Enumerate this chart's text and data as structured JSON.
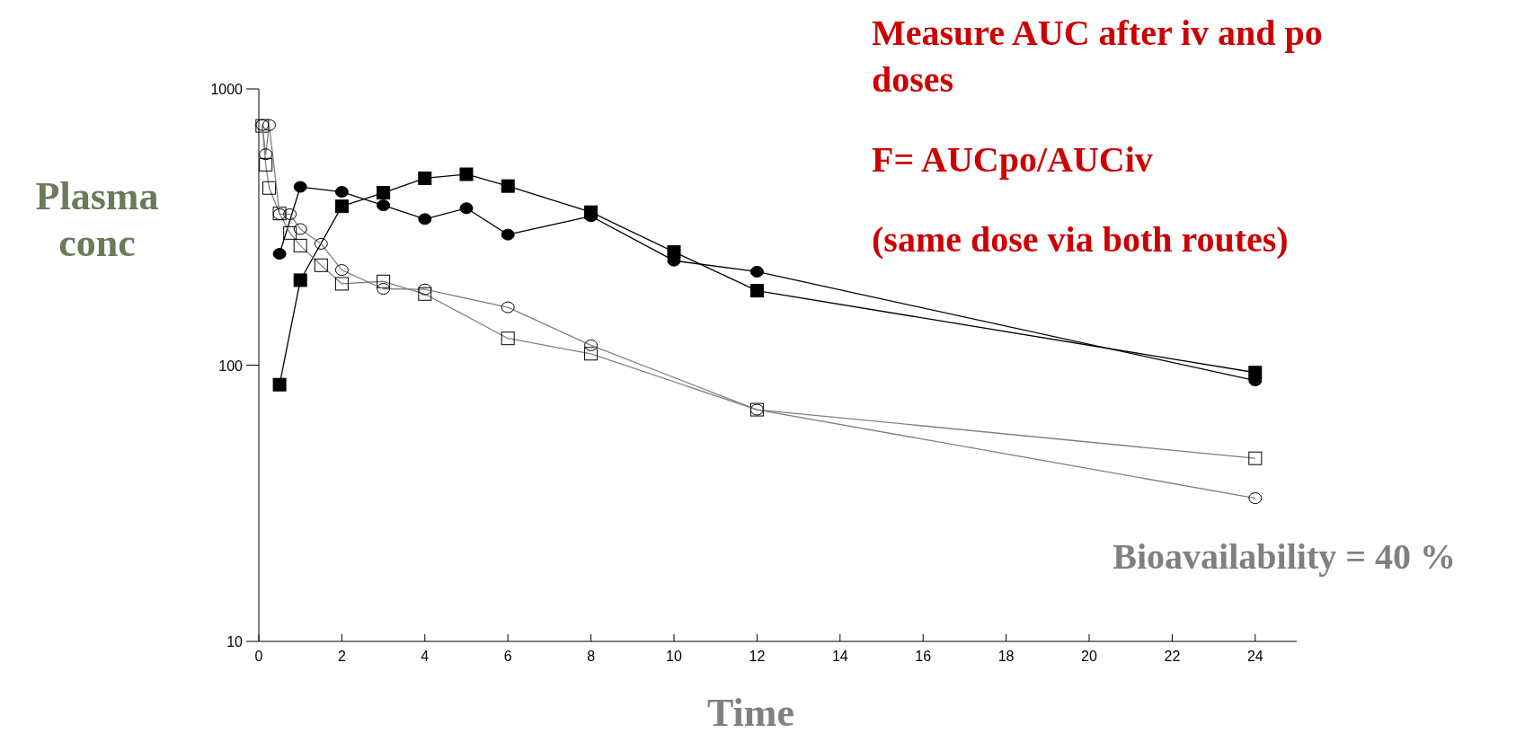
{
  "chart_data": {
    "type": "line",
    "xlabel": "Time",
    "ylabel": "Plasma conc",
    "log": "y",
    "xlim": [
      0,
      25
    ],
    "xticks": [
      0,
      2,
      4,
      6,
      8,
      10,
      12,
      14,
      16,
      18,
      20,
      22,
      24
    ],
    "ylim": [
      10,
      1000
    ],
    "yticks": [
      10,
      100,
      1000
    ],
    "grid": false,
    "series": [
      {
        "color": "#000000",
        "marker": "square",
        "x": [
          0.5,
          1,
          2,
          3,
          4,
          5,
          6,
          8,
          10,
          12,
          24
        ],
        "values": [
          85,
          203,
          376,
          421,
          475,
          491,
          445,
          358,
          257,
          186,
          94
        ]
      },
      {
        "color": "#000000",
        "marker": "circle",
        "x": [
          0.5,
          1,
          2,
          3,
          4,
          5,
          6,
          8,
          10,
          12,
          24
        ],
        "values": [
          253,
          442,
          424,
          379,
          338,
          370,
          297,
          346,
          239,
          218,
          88
        ]
      },
      {
        "color": "#808080",
        "marker": "square",
        "x": [
          0.083,
          0.167,
          0.25,
          0.5,
          0.75,
          1,
          1.5,
          2,
          3,
          4,
          6,
          8,
          12,
          24
        ],
        "values": [
          735,
          532,
          438,
          354,
          301,
          271,
          230,
          197,
          201,
          181,
          125,
          110,
          69,
          46
        ]
      },
      {
        "color": "#808080",
        "marker": "circle",
        "x": [
          0.083,
          0.167,
          0.25,
          0.5,
          0.75,
          1,
          1.5,
          2,
          3,
          4,
          6,
          8,
          12,
          24
        ],
        "values": [
          740,
          580,
          740,
          352,
          352,
          311,
          275,
          221,
          189,
          188,
          162,
          118,
          69,
          33
        ]
      }
    ],
    "annotations": [
      "Measure AUC after iv and po doses",
      "F= AUCpo/AUCiv",
      "(same dose via both routes)",
      "Bioavailability = 40 %"
    ]
  }
}
